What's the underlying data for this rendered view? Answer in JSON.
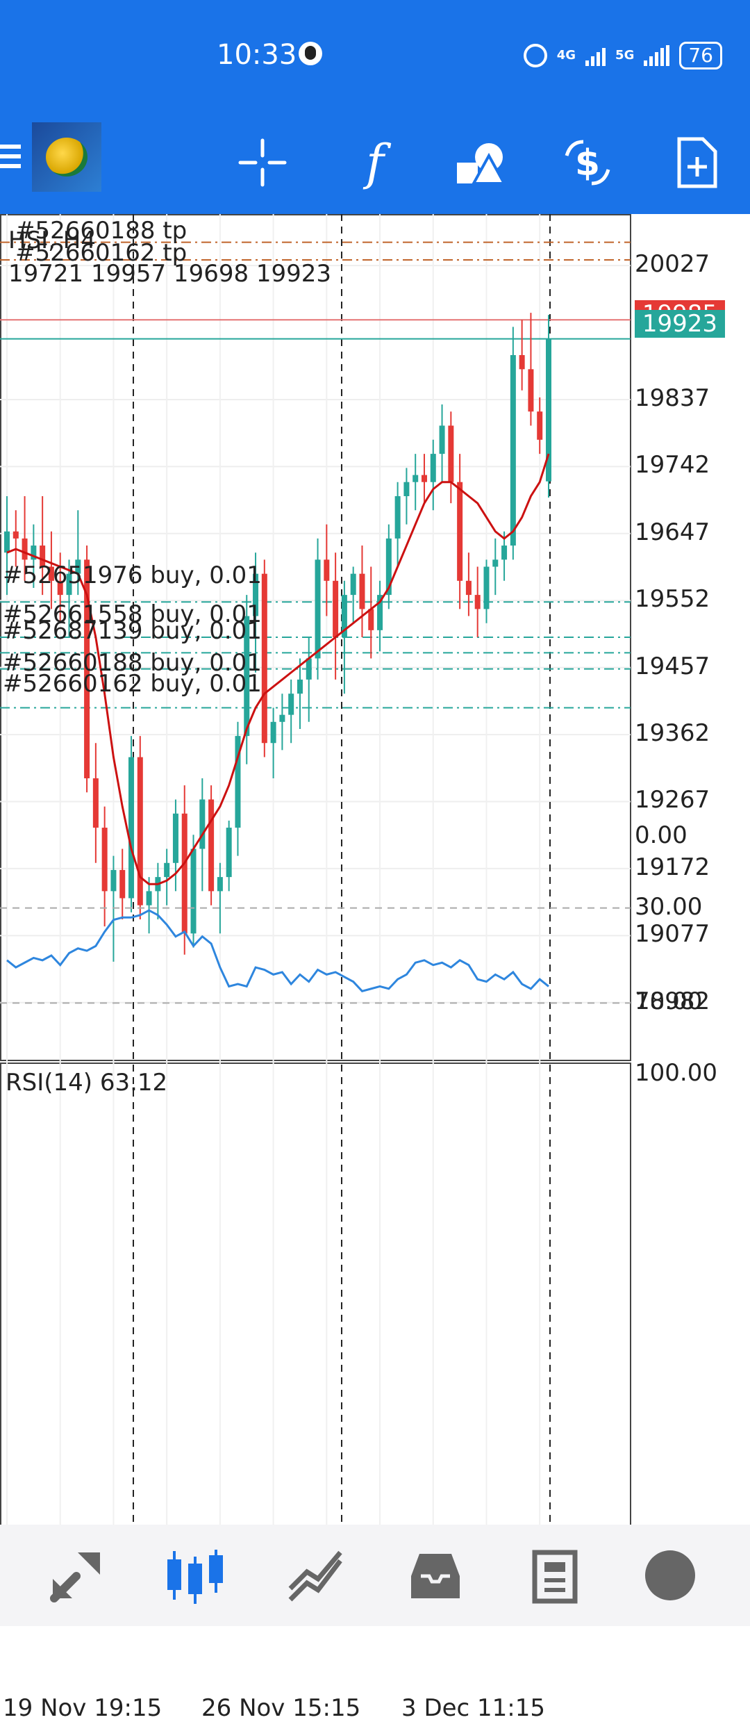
{
  "status": {
    "time": "10:33",
    "net_4g": "4G",
    "net_5g": "5G",
    "battery": "76"
  },
  "toolbar": {
    "icons": [
      "menu-icon",
      "metatrader-logo",
      "crosshair-icon",
      "function-icon",
      "objects-icon",
      "trade-icon",
      "new-order-icon"
    ],
    "f_label": "f"
  },
  "chart": {
    "symbol_label": "HSI, H4",
    "ohlc": "19721 19957 19698 19923",
    "current_price": "19923",
    "upper_price_partial": "19985",
    "rsi_label": "RSI(14) 63.12",
    "order_labels": [
      "#52660188 tp",
      "#52660162 tp",
      "#52651976 buy, 0.01",
      "#52661558 buy, 0.01",
      "#52687139 buy, 0.01",
      "#52660188 buy, 0.01",
      "#52660162 buy, 0.01"
    ],
    "price_axis": [
      "20027",
      "19837",
      "19742",
      "19647",
      "19552",
      "19457",
      "19362",
      "19267",
      "19172",
      "19077",
      "18982"
    ],
    "rsi_axis": [
      "100.00",
      "70.00",
      "30.00",
      "0.00"
    ],
    "time_axis": [
      "19 Nov 19:15",
      "26 Nov 15:15",
      "3 Dec 11:15"
    ],
    "colors": {
      "bull": "#26a69a",
      "bear": "#e53935",
      "ma": "#cc1111",
      "rsi": "#2e86de",
      "accent": "#1a73e8"
    }
  },
  "chart_data": {
    "type": "candlestick",
    "ylim": [
      18900,
      20100
    ],
    "rsi_ylim": [
      0,
      100
    ],
    "candles": [
      [
        19620,
        19700,
        19560,
        19650
      ],
      [
        19650,
        19680,
        19600,
        19640
      ],
      [
        19640,
        19700,
        19580,
        19610
      ],
      [
        19610,
        19660,
        19570,
        19630
      ],
      [
        19630,
        19700,
        19560,
        19600
      ],
      [
        19600,
        19650,
        19540,
        19580
      ],
      [
        19580,
        19620,
        19520,
        19560
      ],
      [
        19560,
        19610,
        19500,
        19590
      ],
      [
        19590,
        19680,
        19560,
        19610
      ],
      [
        19610,
        19630,
        19280,
        19300
      ],
      [
        19300,
        19350,
        19180,
        19230
      ],
      [
        19230,
        19260,
        19090,
        19140
      ],
      [
        19140,
        19190,
        19040,
        19170
      ],
      [
        19170,
        19200,
        19100,
        19130
      ],
      [
        19130,
        19360,
        19110,
        19330
      ],
      [
        19330,
        19360,
        19100,
        19120
      ],
      [
        19120,
        19160,
        19080,
        19140
      ],
      [
        19140,
        19180,
        19100,
        19160
      ],
      [
        19160,
        19200,
        19120,
        19180
      ],
      [
        19180,
        19270,
        19140,
        19250
      ],
      [
        19250,
        19290,
        19050,
        19080
      ],
      [
        19080,
        19220,
        19060,
        19200
      ],
      [
        19200,
        19300,
        19140,
        19270
      ],
      [
        19270,
        19290,
        19120,
        19140
      ],
      [
        19140,
        19180,
        19080,
        19160
      ],
      [
        19160,
        19240,
        19140,
        19230
      ],
      [
        19230,
        19380,
        19190,
        19360
      ],
      [
        19360,
        19560,
        19320,
        19530
      ],
      [
        19530,
        19620,
        19450,
        19590
      ],
      [
        19590,
        19610,
        19330,
        19350
      ],
      [
        19350,
        19400,
        19300,
        19380
      ],
      [
        19380,
        19420,
        19340,
        19390
      ],
      [
        19390,
        19440,
        19350,
        19420
      ],
      [
        19420,
        19470,
        19370,
        19440
      ],
      [
        19440,
        19500,
        19380,
        19470
      ],
      [
        19470,
        19640,
        19440,
        19610
      ],
      [
        19610,
        19660,
        19530,
        19580
      ],
      [
        19580,
        19620,
        19440,
        19500
      ],
      [
        19500,
        19580,
        19420,
        19560
      ],
      [
        19560,
        19600,
        19520,
        19590
      ],
      [
        19590,
        19630,
        19500,
        19540
      ],
      [
        19540,
        19600,
        19470,
        19510
      ],
      [
        19510,
        19580,
        19480,
        19560
      ],
      [
        19560,
        19660,
        19540,
        19640
      ],
      [
        19640,
        19720,
        19600,
        19700
      ],
      [
        19700,
        19740,
        19660,
        19720
      ],
      [
        19720,
        19760,
        19680,
        19730
      ],
      [
        19730,
        19760,
        19690,
        19720
      ],
      [
        19720,
        19780,
        19680,
        19760
      ],
      [
        19760,
        19830,
        19720,
        19800
      ],
      [
        19800,
        19820,
        19690,
        19720
      ],
      [
        19720,
        19760,
        19540,
        19580
      ],
      [
        19580,
        19620,
        19530,
        19560
      ],
      [
        19560,
        19600,
        19500,
        19540
      ],
      [
        19540,
        19610,
        19520,
        19600
      ],
      [
        19600,
        19640,
        19560,
        19610
      ],
      [
        19610,
        19650,
        19580,
        19630
      ],
      [
        19630,
        19940,
        19610,
        19900
      ],
      [
        19900,
        19950,
        19850,
        19880
      ],
      [
        19880,
        19960,
        19800,
        19820
      ],
      [
        19820,
        19840,
        19760,
        19780
      ],
      [
        19721,
        19957,
        19698,
        19923
      ]
    ],
    "ma": [
      19620,
      19625,
      19620,
      19615,
      19610,
      19605,
      19600,
      19595,
      19590,
      19560,
      19500,
      19420,
      19330,
      19260,
      19200,
      19160,
      19150,
      19150,
      19155,
      19165,
      19180,
      19200,
      19220,
      19240,
      19260,
      19290,
      19330,
      19370,
      19400,
      19420,
      19430,
      19440,
      19450,
      19460,
      19470,
      19480,
      19490,
      19500,
      19510,
      19520,
      19530,
      19540,
      19550,
      19570,
      19600,
      19630,
      19660,
      19690,
      19710,
      19720,
      19720,
      19710,
      19700,
      19690,
      19670,
      19650,
      19640,
      19650,
      19670,
      19700,
      19720,
      19760
    ],
    "rsi": [
      52,
      55,
      53,
      51,
      52,
      50,
      54,
      49,
      47,
      48,
      46,
      40,
      35,
      34,
      34,
      33,
      31,
      33,
      37,
      42,
      40,
      46,
      42,
      45,
      55,
      63,
      62,
      63,
      55,
      56,
      58,
      57,
      62,
      58,
      61,
      56,
      58,
      57,
      59,
      61,
      65,
      64,
      63,
      64,
      60,
      58,
      53,
      52,
      54,
      53,
      55,
      52,
      54,
      60,
      61,
      58,
      60,
      57,
      62,
      64,
      60,
      63
    ],
    "rsi_levels": [
      70,
      30
    ],
    "order_prices": [
      20060,
      20035,
      19550,
      19500,
      19478,
      19455,
      19400
    ],
    "current_price": 19923,
    "upper_line": 19950,
    "time_labels": [
      "19 Nov 19:15",
      "26 Nov 15:15",
      "3 Dec 11:15"
    ]
  }
}
